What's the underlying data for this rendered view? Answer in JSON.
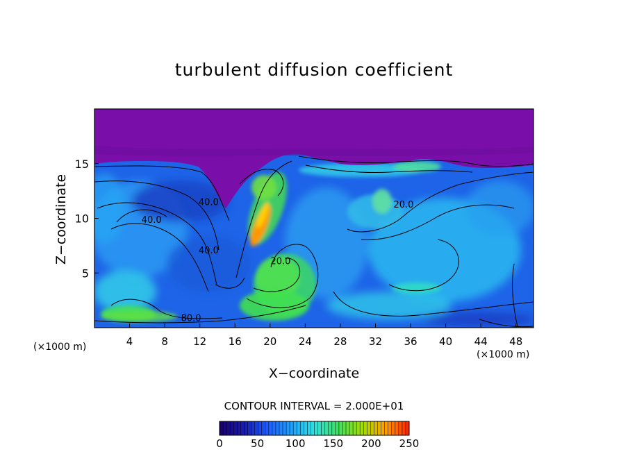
{
  "chart_data": {
    "type": "heatmap",
    "title": "turbulent diffusion coefficient",
    "xlabel": "X−coordinate",
    "ylabel": "Z−coordinate",
    "x_unit": "(×1000 m)",
    "y_unit": "(×1000 m)",
    "xlim": [
      0,
      50
    ],
    "ylim": [
      0,
      20
    ],
    "x_ticks": [
      4,
      8,
      12,
      16,
      20,
      24,
      28,
      32,
      36,
      40,
      44,
      48
    ],
    "y_ticks": [
      5,
      10,
      15
    ],
    "contour_interval_label": "CONTOUR INTERVAL = 2.000E+01",
    "contour_labels": [
      {
        "text": "40.0",
        "x": 6.5,
        "z": 9.6
      },
      {
        "text": "40.0",
        "x": 13.0,
        "z": 11.2
      },
      {
        "text": "40.0",
        "x": 13.0,
        "z": 6.8
      },
      {
        "text": "80.0",
        "x": 11.0,
        "z": 0.6
      },
      {
        "text": "20.0",
        "x": 21.2,
        "z": 5.8
      },
      {
        "text": "20.0",
        "x": 35.2,
        "z": 11.0
      }
    ],
    "colorbar": {
      "min": 0,
      "max": 250,
      "ticks": [
        0,
        50,
        100,
        150,
        200,
        250
      ],
      "colors": [
        "#1a0070",
        "#1a1aaa",
        "#1e5aff",
        "#1ea0ff",
        "#30e0e0",
        "#40e060",
        "#a0e000",
        "#ffa000",
        "#ff2000"
      ]
    },
    "colors": {
      "top_layer": "#7a0ea8",
      "background_blue": "#1e6cf0",
      "cyan": "#30c8f0",
      "green": "#30e040",
      "orange": "#ff8c00",
      "deep_blue": "#0a0a9a"
    }
  }
}
